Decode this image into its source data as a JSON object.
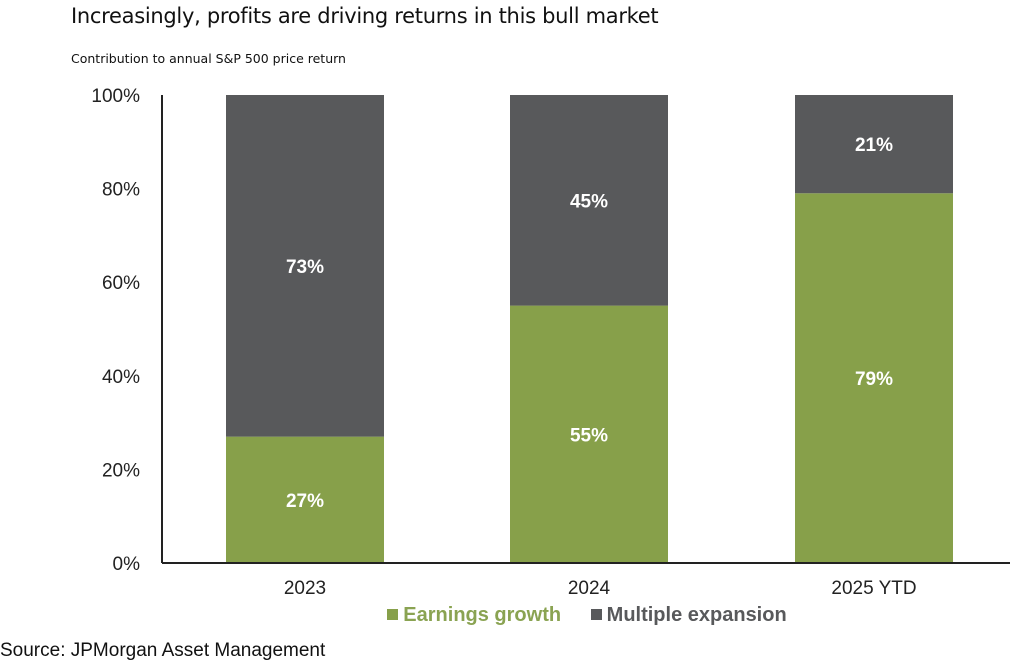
{
  "chart_data": {
    "type": "bar",
    "stacked": true,
    "title": "Increasingly, profits are driving returns in this bull market",
    "subtitle": "Contribution to annual S&P 500 price return",
    "categories": [
      "2023",
      "2024",
      "2025 YTD"
    ],
    "series": [
      {
        "name": "Earnings growth",
        "values": [
          27,
          55,
          79
        ],
        "labels": [
          "27%",
          "55%",
          "79%"
        ],
        "color": "#87a04a"
      },
      {
        "name": "Multiple expansion",
        "values": [
          73,
          45,
          21
        ],
        "labels": [
          "73%",
          "45%",
          "21%"
        ],
        "color": "#58595b"
      }
    ],
    "ylim": [
      0,
      100
    ],
    "yticks": [
      "0%",
      "20%",
      "40%",
      "60%",
      "80%",
      "100%"
    ],
    "grid": false,
    "legend": "bottom"
  },
  "source": "Source: JPMorgan Asset Management"
}
